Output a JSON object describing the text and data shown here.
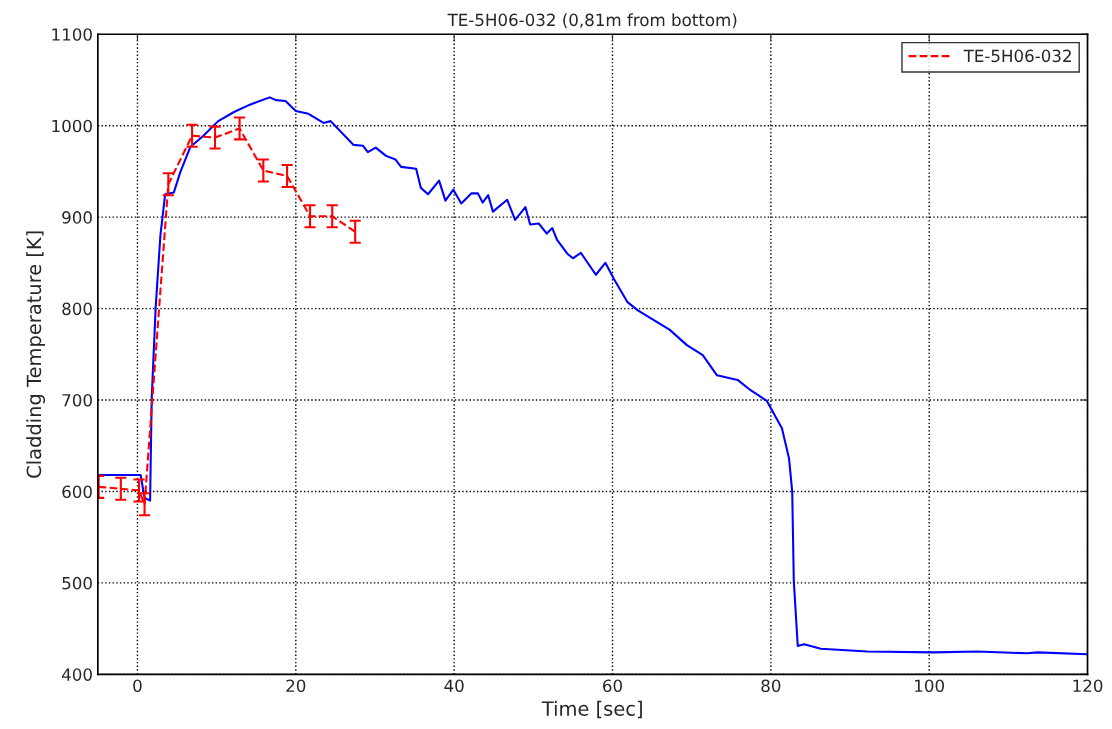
{
  "chart_data": {
    "type": "line",
    "title": "TE-5H06-032 (0,81m from bottom)",
    "xlabel": "Time [sec]",
    "ylabel": "Cladding Temperature [K]",
    "xlim": [
      -5,
      120
    ],
    "xticks": [
      0,
      20,
      40,
      60,
      80,
      100,
      120
    ],
    "ylim": [
      400,
      1100
    ],
    "yticks": [
      400,
      500,
      600,
      700,
      800,
      900,
      1000,
      1100
    ],
    "grid": true,
    "legend": "top right",
    "series": [
      {
        "color": "#0000ff",
        "line_style": "solid",
        "marker": "none",
        "x": [
          -4.9,
          0.4,
          0.9,
          1.6,
          1.8,
          2.3,
          2.9,
          3.5,
          4.6,
          5.4,
          6.7,
          8.2,
          10.2,
          12.2,
          14.2,
          16.7,
          17.5,
          18.7,
          20,
          21.6,
          23.5,
          24.4,
          27.3,
          28.5,
          29.1,
          30.1,
          31.4,
          32.6,
          33.3,
          35.2,
          35.8,
          36.7,
          38.1,
          38.9,
          39.9,
          40.9,
          42.2,
          43.0,
          43.6,
          44.3,
          44.9,
          46.7,
          47.7,
          49.0,
          49.6,
          50.7,
          51.7,
          52.4,
          53.0,
          54.3,
          55.0,
          56.0,
          57.9,
          59.1,
          60.2,
          61.9,
          63.2,
          67.2,
          69.4,
          71.4,
          73.2,
          75.8,
          77.4,
          79.5,
          81.4,
          82.3,
          82.7,
          82.9,
          83.4,
          84.2,
          86.3,
          92.2,
          100.6,
          106.1,
          112.4,
          113.7,
          120
        ],
        "values": [
          618,
          618,
          593,
          590,
          701,
          801,
          880,
          925,
          927,
          949,
          977,
          988,
          1005,
          1015,
          1023,
          1031,
          1028,
          1027,
          1016,
          1013,
          1003,
          1005,
          979,
          978,
          971,
          976,
          967,
          963,
          955,
          953,
          932,
          925,
          940,
          918,
          930,
          915,
          926,
          926,
          916,
          924,
          906,
          919,
          897,
          911,
          892,
          893,
          882,
          888,
          875,
          860,
          855,
          861,
          837,
          850,
          832,
          807,
          798,
          777,
          760,
          749,
          727,
          722,
          711,
          699,
          669,
          636,
          600,
          502,
          431,
          433,
          428,
          425,
          424,
          425,
          423,
          424,
          422
        ]
      },
      {
        "name": "TE-5H06-032",
        "color": "#ff0000",
        "line_style": "dashed",
        "marker": "none",
        "x": [
          -4.9,
          -2.1,
          0.2,
          0.9,
          3.9,
          6.9,
          9.8,
          12.9,
          15.9,
          18.9,
          21.8,
          24.6,
          27.5
        ],
        "values": [
          605,
          603,
          601,
          586,
          936,
          989,
          987,
          997,
          951,
          945,
          901,
          901,
          884
        ],
        "errors": [
          12,
          12,
          12,
          12,
          12,
          12,
          12,
          12,
          12,
          12,
          12,
          12,
          12
        ]
      }
    ]
  }
}
